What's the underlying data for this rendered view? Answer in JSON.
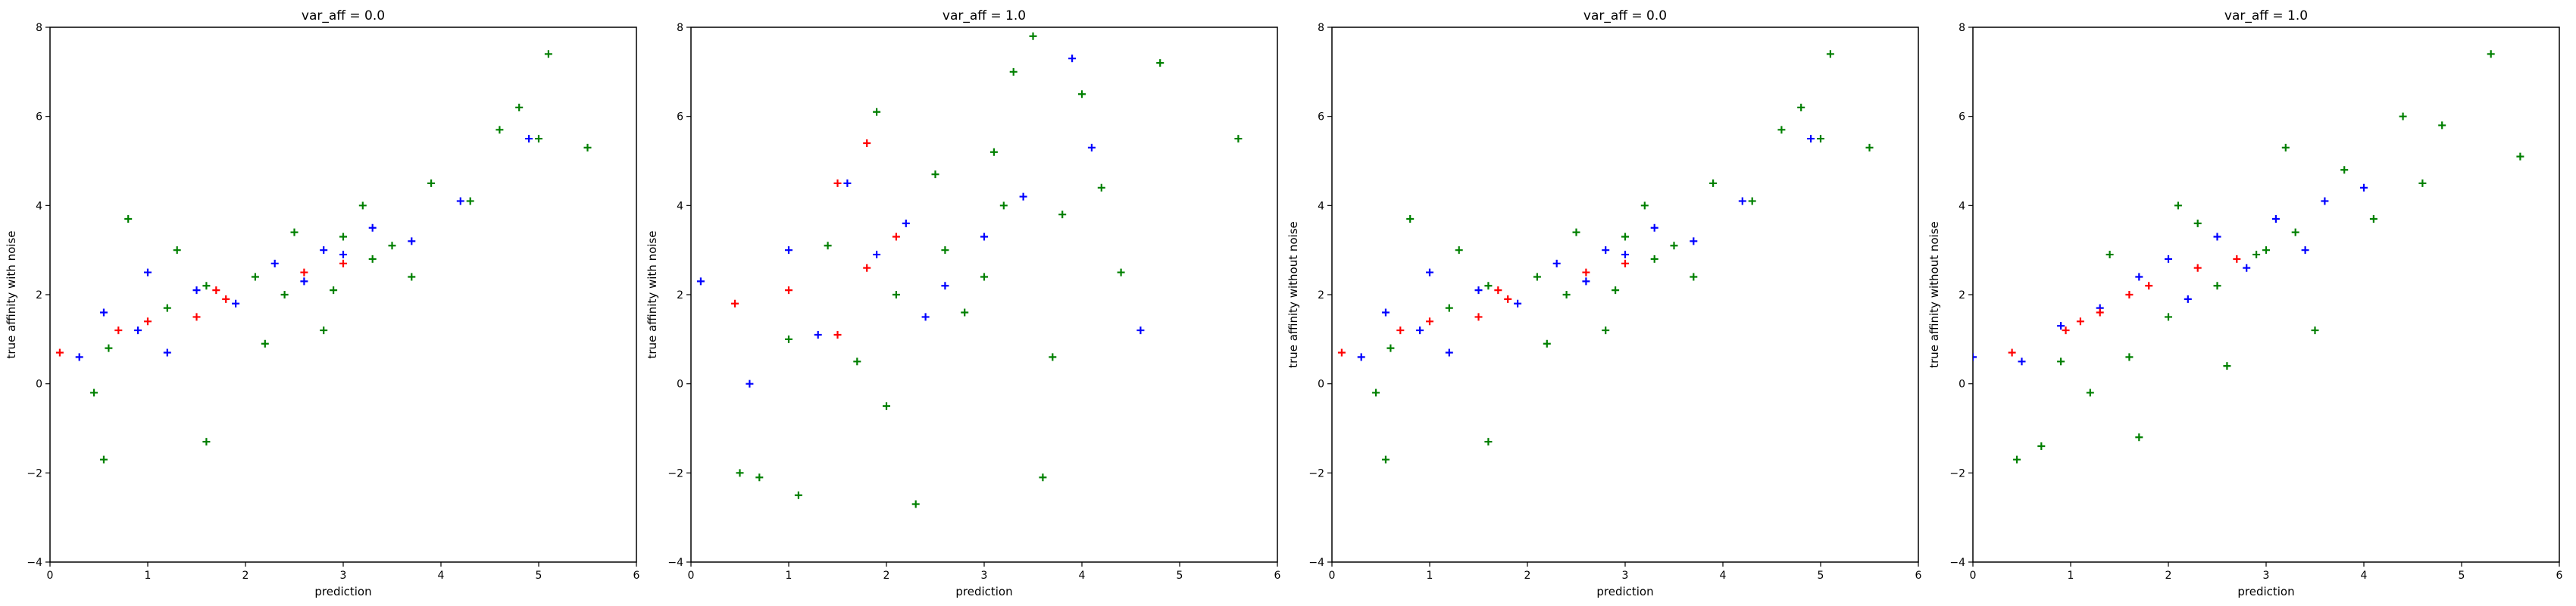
{
  "chart_data": [
    {
      "type": "scatter",
      "title": "var_aff = 0.0",
      "xlabel": "prediction",
      "ylabel": "true affinity with noise",
      "xlim": [
        0,
        6
      ],
      "ylim": [
        -4,
        8
      ],
      "xticks": [
        "0",
        "1",
        "2",
        "3",
        "4",
        "5",
        "6"
      ],
      "yticks": [
        "−4",
        "−2",
        "0",
        "2",
        "4",
        "6",
        "8"
      ],
      "grid": false,
      "marker": "plus",
      "series": [
        {
          "color": "#008000",
          "values": [
            [
              0.45,
              -0.2
            ],
            [
              0.6,
              0.8
            ],
            [
              0.8,
              3.7
            ],
            [
              1.2,
              1.7
            ],
            [
              1.3,
              3.0
            ],
            [
              1.6,
              2.2
            ],
            [
              2.1,
              2.4
            ],
            [
              2.5,
              3.4
            ],
            [
              2.9,
              2.1
            ],
            [
              3.2,
              4.0
            ],
            [
              3.5,
              3.1
            ],
            [
              3.9,
              4.5
            ],
            [
              4.3,
              4.1
            ],
            [
              4.6,
              5.7
            ],
            [
              5.0,
              5.5
            ],
            [
              5.1,
              7.4
            ],
            [
              5.5,
              5.3
            ],
            [
              1.6,
              -1.3
            ],
            [
              0.55,
              -1.7
            ],
            [
              2.2,
              0.9
            ],
            [
              2.8,
              1.2
            ],
            [
              3.7,
              2.4
            ],
            [
              4.8,
              6.2
            ],
            [
              2.4,
              2.0
            ],
            [
              3.0,
              3.3
            ],
            [
              3.3,
              2.8
            ]
          ]
        },
        {
          "color": "#0000ff",
          "values": [
            [
              0.3,
              0.6
            ],
            [
              0.55,
              1.6
            ],
            [
              0.9,
              1.2
            ],
            [
              1.0,
              2.5
            ],
            [
              1.5,
              2.1
            ],
            [
              1.9,
              1.8
            ],
            [
              2.3,
              2.7
            ],
            [
              2.8,
              3.0
            ],
            [
              3.3,
              3.5
            ],
            [
              3.7,
              3.2
            ],
            [
              4.2,
              4.1
            ],
            [
              4.9,
              5.5
            ],
            [
              2.6,
              2.3
            ],
            [
              3.0,
              2.9
            ],
            [
              1.2,
              0.7
            ]
          ]
        },
        {
          "color": "#ff0000",
          "values": [
            [
              0.1,
              0.7
            ],
            [
              0.7,
              1.2
            ],
            [
              1.0,
              1.4
            ],
            [
              1.5,
              1.5
            ],
            [
              1.7,
              2.1
            ],
            [
              1.8,
              1.9
            ],
            [
              2.6,
              2.5
            ],
            [
              3.0,
              2.7
            ]
          ]
        }
      ]
    },
    {
      "type": "scatter",
      "title": "var_aff = 1.0",
      "xlabel": "prediction",
      "ylabel": "true affinity with noise",
      "xlim": [
        0,
        6
      ],
      "ylim": [
        -4,
        8
      ],
      "xticks": [
        "0",
        "1",
        "2",
        "3",
        "4",
        "5",
        "6"
      ],
      "yticks": [
        "−4",
        "−2",
        "0",
        "2",
        "4",
        "6",
        "8"
      ],
      "grid": false,
      "marker": "plus",
      "series": [
        {
          "color": "#008000",
          "values": [
            [
              0.5,
              -2.0
            ],
            [
              0.7,
              -2.1
            ],
            [
              1.1,
              -2.5
            ],
            [
              1.0,
              1.0
            ],
            [
              1.4,
              3.1
            ],
            [
              1.7,
              0.5
            ],
            [
              2.1,
              2.0
            ],
            [
              2.3,
              -2.7
            ],
            [
              2.5,
              4.7
            ],
            [
              2.8,
              1.6
            ],
            [
              3.1,
              5.2
            ],
            [
              3.3,
              7.0
            ],
            [
              3.6,
              -2.1
            ],
            [
              3.8,
              3.8
            ],
            [
              4.0,
              6.5
            ],
            [
              4.4,
              2.5
            ],
            [
              4.8,
              7.2
            ],
            [
              5.6,
              5.5
            ],
            [
              3.5,
              7.8
            ],
            [
              2.6,
              3.0
            ],
            [
              3.0,
              2.4
            ],
            [
              3.2,
              4.0
            ],
            [
              2.0,
              -0.5
            ],
            [
              4.2,
              4.4
            ],
            [
              1.9,
              6.1
            ],
            [
              3.7,
              0.6
            ]
          ]
        },
        {
          "color": "#0000ff",
          "values": [
            [
              0.1,
              2.3
            ],
            [
              0.6,
              0.0
            ],
            [
              1.0,
              3.0
            ],
            [
              1.3,
              1.1
            ],
            [
              1.9,
              2.9
            ],
            [
              2.2,
              3.6
            ],
            [
              2.6,
              2.2
            ],
            [
              3.0,
              3.3
            ],
            [
              3.4,
              4.2
            ],
            [
              4.1,
              5.3
            ],
            [
              4.6,
              1.2
            ],
            [
              2.4,
              1.5
            ],
            [
              3.9,
              7.3
            ],
            [
              1.6,
              4.5
            ]
          ]
        },
        {
          "color": "#ff0000",
          "values": [
            [
              0.45,
              1.8
            ],
            [
              1.0,
              2.1
            ],
            [
              1.5,
              1.1
            ],
            [
              1.8,
              2.6
            ],
            [
              1.8,
              5.4
            ],
            [
              2.1,
              3.3
            ],
            [
              1.5,
              4.5
            ]
          ]
        }
      ]
    },
    {
      "type": "scatter",
      "title": "var_aff = 0.0",
      "xlabel": "prediction",
      "ylabel": "true affinity without noise",
      "xlim": [
        0,
        6
      ],
      "ylim": [
        -4,
        8
      ],
      "xticks": [
        "0",
        "1",
        "2",
        "3",
        "4",
        "5",
        "6"
      ],
      "yticks": [
        "−4",
        "−2",
        "0",
        "2",
        "4",
        "6",
        "8"
      ],
      "grid": false,
      "marker": "plus",
      "series": [
        {
          "color": "#008000",
          "values": [
            [
              0.45,
              -0.2
            ],
            [
              0.6,
              0.8
            ],
            [
              0.8,
              3.7
            ],
            [
              1.2,
              1.7
            ],
            [
              1.3,
              3.0
            ],
            [
              1.6,
              2.2
            ],
            [
              2.1,
              2.4
            ],
            [
              2.5,
              3.4
            ],
            [
              2.9,
              2.1
            ],
            [
              3.2,
              4.0
            ],
            [
              3.5,
              3.1
            ],
            [
              3.9,
              4.5
            ],
            [
              4.3,
              4.1
            ],
            [
              4.6,
              5.7
            ],
            [
              5.0,
              5.5
            ],
            [
              5.1,
              7.4
            ],
            [
              5.5,
              5.3
            ],
            [
              1.6,
              -1.3
            ],
            [
              0.55,
              -1.7
            ],
            [
              2.2,
              0.9
            ],
            [
              2.8,
              1.2
            ],
            [
              3.7,
              2.4
            ],
            [
              4.8,
              6.2
            ],
            [
              2.4,
              2.0
            ],
            [
              3.0,
              3.3
            ],
            [
              3.3,
              2.8
            ]
          ]
        },
        {
          "color": "#0000ff",
          "values": [
            [
              0.3,
              0.6
            ],
            [
              0.55,
              1.6
            ],
            [
              0.9,
              1.2
            ],
            [
              1.0,
              2.5
            ],
            [
              1.5,
              2.1
            ],
            [
              1.9,
              1.8
            ],
            [
              2.3,
              2.7
            ],
            [
              2.8,
              3.0
            ],
            [
              3.3,
              3.5
            ],
            [
              3.7,
              3.2
            ],
            [
              4.2,
              4.1
            ],
            [
              4.9,
              5.5
            ],
            [
              2.6,
              2.3
            ],
            [
              3.0,
              2.9
            ],
            [
              1.2,
              0.7
            ]
          ]
        },
        {
          "color": "#ff0000",
          "values": [
            [
              0.1,
              0.7
            ],
            [
              0.7,
              1.2
            ],
            [
              1.0,
              1.4
            ],
            [
              1.5,
              1.5
            ],
            [
              1.7,
              2.1
            ],
            [
              1.8,
              1.9
            ],
            [
              2.6,
              2.5
            ],
            [
              3.0,
              2.7
            ]
          ]
        }
      ]
    },
    {
      "type": "scatter",
      "title": "var_aff = 1.0",
      "xlabel": "prediction",
      "ylabel": "true affinity without noise",
      "xlim": [
        0,
        6
      ],
      "ylim": [
        -4,
        8
      ],
      "xticks": [
        "0",
        "1",
        "2",
        "3",
        "4",
        "5",
        "6"
      ],
      "yticks": [
        "−4",
        "−2",
        "0",
        "2",
        "4",
        "6",
        "8"
      ],
      "grid": false,
      "marker": "plus",
      "series": [
        {
          "color": "#008000",
          "values": [
            [
              0.45,
              -1.7
            ],
            [
              0.7,
              -1.4
            ],
            [
              0.9,
              0.5
            ],
            [
              1.2,
              -0.2
            ],
            [
              1.4,
              2.9
            ],
            [
              1.7,
              -1.2
            ],
            [
              2.0,
              1.5
            ],
            [
              2.3,
              3.6
            ],
            [
              2.6,
              0.4
            ],
            [
              2.9,
              2.9
            ],
            [
              3.2,
              5.3
            ],
            [
              3.5,
              1.2
            ],
            [
              3.8,
              4.8
            ],
            [
              4.1,
              3.7
            ],
            [
              4.4,
              6.0
            ],
            [
              4.8,
              5.8
            ],
            [
              5.3,
              7.4
            ],
            [
              5.6,
              5.1
            ],
            [
              2.5,
              2.2
            ],
            [
              3.0,
              3.0
            ],
            [
              3.3,
              3.4
            ],
            [
              2.1,
              4.0
            ],
            [
              4.6,
              4.5
            ],
            [
              1.6,
              0.6
            ]
          ]
        },
        {
          "color": "#0000ff",
          "values": [
            [
              0.0,
              0.6
            ],
            [
              0.5,
              0.5
            ],
            [
              0.9,
              1.3
            ],
            [
              1.3,
              1.7
            ],
            [
              1.7,
              2.4
            ],
            [
              2.0,
              2.8
            ],
            [
              2.5,
              3.3
            ],
            [
              2.8,
              2.6
            ],
            [
              3.1,
              3.7
            ],
            [
              3.6,
              4.1
            ],
            [
              4.0,
              4.4
            ],
            [
              2.2,
              1.9
            ],
            [
              3.4,
              3.0
            ]
          ]
        },
        {
          "color": "#ff0000",
          "values": [
            [
              0.4,
              0.7
            ],
            [
              0.95,
              1.2
            ],
            [
              1.1,
              1.4
            ],
            [
              1.3,
              1.6
            ],
            [
              1.6,
              2.0
            ],
            [
              1.8,
              2.2
            ],
            [
              2.3,
              2.6
            ],
            [
              2.7,
              2.8
            ]
          ]
        }
      ]
    }
  ]
}
